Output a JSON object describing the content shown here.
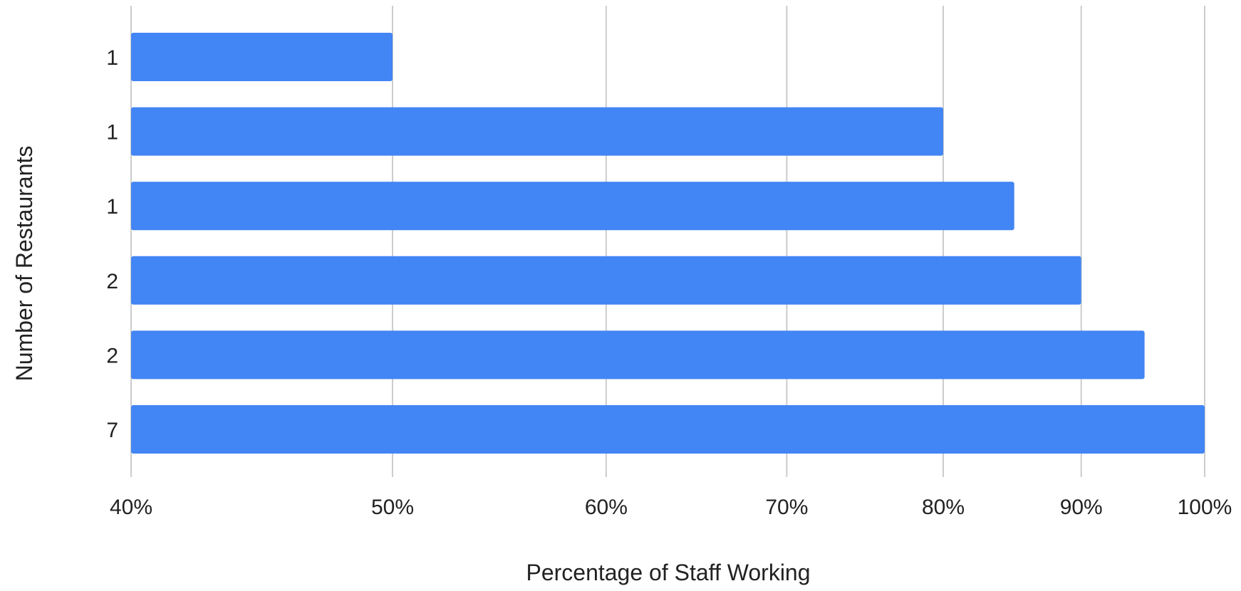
{
  "chart_data": {
    "type": "bar",
    "orientation": "horizontal",
    "title": "",
    "xlabel": "Percentage of Staff Working",
    "ylabel": "Number of Restaurants",
    "categories": [
      "1",
      "1",
      "1",
      "2",
      "2",
      "7"
    ],
    "values": [
      50,
      80,
      85,
      90,
      95,
      100
    ],
    "x_ticks": [
      {
        "value": 40,
        "label": "40%"
      },
      {
        "value": 50,
        "label": "50%"
      },
      {
        "value": 60,
        "label": "60%"
      },
      {
        "value": 70,
        "label": "70%"
      },
      {
        "value": 80,
        "label": "80%"
      },
      {
        "value": 90,
        "label": "90%"
      },
      {
        "value": 100,
        "label": "100%"
      }
    ],
    "x_scale": "log",
    "xlim": [
      40,
      100
    ],
    "grid": "vertical",
    "legend": "none",
    "bar_color": "#4285f4",
    "grid_color": "#cccccc"
  }
}
